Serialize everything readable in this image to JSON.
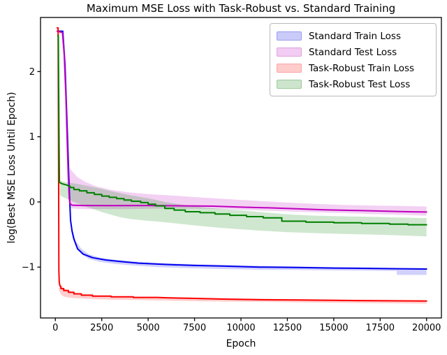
{
  "chart_data": {
    "type": "line",
    "title": "Maximum MSE Loss with Task-Robust vs. Standard Training",
    "xlabel": "Epoch",
    "ylabel": "log(Best MSE Loss Until Epoch)",
    "xlim": [
      -800,
      20800
    ],
    "ylim": [
      -1.78,
      2.83
    ],
    "grid": false,
    "legend_position": "upper right",
    "x_ticks": [
      0,
      2500,
      5000,
      7500,
      10000,
      12500,
      15000,
      17500,
      20000
    ],
    "x_tick_labels": [
      "0",
      "2500",
      "5000",
      "7500",
      "10000",
      "12500",
      "15000",
      "17500",
      "20000"
    ],
    "y_ticks": [
      2,
      1,
      0,
      -1
    ],
    "y_tick_labels": [
      "2",
      "1",
      "0",
      "−1"
    ],
    "series": [
      {
        "name": "Standard Train Loss",
        "line_color": "#0000ee",
        "band_fill": "rgba(0,0,238,0.18)",
        "legend_fill": "#cbcbf9",
        "legend_edge": "#9c9cf0",
        "points": [
          [
            100,
            2.62
          ],
          [
            400,
            2.62
          ],
          [
            520,
            2.1
          ],
          [
            620,
            1.3
          ],
          [
            700,
            0.6
          ],
          [
            760,
            0.1
          ],
          [
            820,
            -0.28
          ],
          [
            900,
            -0.45
          ],
          [
            1000,
            -0.57
          ],
          [
            1200,
            -0.72
          ],
          [
            1500,
            -0.8
          ],
          [
            2000,
            -0.855
          ],
          [
            2700,
            -0.89
          ],
          [
            3500,
            -0.915
          ],
          [
            4500,
            -0.94
          ],
          [
            6000,
            -0.96
          ],
          [
            7500,
            -0.975
          ],
          [
            9000,
            -0.985
          ],
          [
            11000,
            -1.0
          ],
          [
            13000,
            -1.005
          ],
          [
            15000,
            -1.015
          ],
          [
            17000,
            -1.02
          ],
          [
            18500,
            -1.025
          ],
          [
            20000,
            -1.03
          ]
        ],
        "band": [
          [
            900,
            -0.5,
            -0.4
          ],
          [
            1100,
            -0.68,
            -0.6
          ],
          [
            1400,
            -0.8,
            -0.72
          ],
          [
            1800,
            -0.875,
            -0.8
          ],
          [
            2400,
            -0.92,
            -0.855
          ],
          [
            3200,
            -0.95,
            -0.885
          ],
          [
            4200,
            -0.975,
            -0.91
          ],
          [
            5500,
            -1.0,
            -0.935
          ],
          [
            7000,
            -1.015,
            -0.95
          ],
          [
            9000,
            -1.03,
            -0.965
          ],
          [
            11000,
            -1.04,
            -0.98
          ],
          [
            13000,
            -1.045,
            -0.99
          ],
          [
            15000,
            -1.05,
            -1.0
          ],
          [
            17000,
            -1.055,
            -1.005
          ],
          [
            18400,
            -1.06,
            -1.01
          ],
          [
            18400,
            -1.12,
            -1.01
          ],
          [
            20000,
            -1.12,
            -1.015
          ]
        ]
      },
      {
        "name": "Standard Test Loss",
        "line_color": "#bf00bf",
        "band_fill": "rgba(191,0,191,0.18)",
        "legend_fill": "#f2ccf2",
        "legend_edge": "#dfa3df",
        "points": [
          [
            100,
            2.62
          ],
          [
            380,
            2.6
          ],
          [
            480,
            2.25
          ],
          [
            570,
            1.6
          ],
          [
            640,
            0.9
          ],
          [
            700,
            0.35
          ],
          [
            750,
            0.05
          ],
          [
            800,
            -0.03
          ],
          [
            900,
            -0.05
          ],
          [
            1500,
            -0.055
          ],
          [
            3000,
            -0.057
          ],
          [
            5000,
            -0.055
          ],
          [
            7000,
            -0.06
          ],
          [
            8500,
            -0.065
          ],
          [
            10000,
            -0.08
          ],
          [
            11500,
            -0.09
          ],
          [
            13000,
            -0.105
          ],
          [
            14500,
            -0.12
          ],
          [
            16000,
            -0.13
          ],
          [
            17500,
            -0.14
          ],
          [
            19000,
            -0.15
          ],
          [
            20000,
            -0.155
          ]
        ],
        "band": [
          [
            780,
            -0.09,
            0.52
          ],
          [
            900,
            -0.1,
            0.47
          ],
          [
            1200,
            -0.105,
            0.38
          ],
          [
            1600,
            -0.11,
            0.31
          ],
          [
            2200,
            -0.11,
            0.24
          ],
          [
            3000,
            -0.11,
            0.185
          ],
          [
            4000,
            -0.11,
            0.145
          ],
          [
            5000,
            -0.105,
            0.12
          ],
          [
            6500,
            -0.1,
            0.095
          ],
          [
            8000,
            -0.105,
            0.065
          ],
          [
            9500,
            -0.115,
            0.04
          ],
          [
            11000,
            -0.13,
            0.015
          ],
          [
            12500,
            -0.145,
            -0.01
          ],
          [
            14000,
            -0.16,
            -0.03
          ],
          [
            15500,
            -0.17,
            -0.045
          ],
          [
            17000,
            -0.185,
            -0.055
          ],
          [
            18500,
            -0.195,
            -0.06
          ],
          [
            20000,
            -0.21,
            -0.07
          ]
        ]
      },
      {
        "name": "Task-Robust Train Loss",
        "line_color": "#ff0000",
        "band_fill": "rgba(255,0,0,0.19)",
        "legend_fill": "#ffcccc",
        "legend_edge": "#fba4a4",
        "points": [
          [
            100,
            2.67
          ],
          [
            150,
            2.67
          ],
          [
            175,
            0.5
          ],
          [
            190,
            -1.05
          ],
          [
            210,
            -1.22
          ],
          [
            240,
            -1.28
          ],
          [
            300,
            -1.3
          ],
          [
            300,
            -1.33
          ],
          [
            450,
            -1.33
          ],
          [
            450,
            -1.36
          ],
          [
            700,
            -1.36
          ],
          [
            700,
            -1.385
          ],
          [
            1000,
            -1.385
          ],
          [
            1000,
            -1.41
          ],
          [
            1400,
            -1.41
          ],
          [
            1400,
            -1.43
          ],
          [
            2000,
            -1.43
          ],
          [
            2000,
            -1.445
          ],
          [
            3000,
            -1.445
          ],
          [
            3000,
            -1.455
          ],
          [
            4200,
            -1.455
          ],
          [
            4200,
            -1.465
          ],
          [
            5500,
            -1.465
          ],
          [
            6000,
            -1.47
          ],
          [
            7500,
            -1.48
          ],
          [
            9000,
            -1.49
          ],
          [
            11000,
            -1.5
          ],
          [
            13000,
            -1.505
          ],
          [
            15000,
            -1.51
          ],
          [
            17000,
            -1.515
          ],
          [
            20000,
            -1.52
          ]
        ],
        "band": [
          [
            200,
            -1.35,
            -1.22
          ],
          [
            300,
            -1.42,
            -1.29
          ],
          [
            450,
            -1.45,
            -1.32
          ],
          [
            700,
            -1.465,
            -1.355
          ],
          [
            1000,
            -1.475,
            -1.39
          ],
          [
            1400,
            -1.48,
            -1.415
          ],
          [
            2000,
            -1.49,
            -1.43
          ],
          [
            3000,
            -1.5,
            -1.445
          ],
          [
            4200,
            -1.505,
            -1.455
          ],
          [
            6000,
            -1.515,
            -1.462
          ],
          [
            8000,
            -1.525,
            -1.47
          ],
          [
            10000,
            -1.53,
            -1.48
          ],
          [
            13000,
            -1.54,
            -1.49
          ],
          [
            16000,
            -1.55,
            -1.5
          ],
          [
            20000,
            -1.56,
            -1.51
          ]
        ]
      },
      {
        "name": "Task-Robust Test Loss",
        "line_color": "#007f00",
        "band_fill": "rgba(0,127,0,0.19)",
        "legend_fill": "#cce5cc",
        "legend_edge": "#9dc99d",
        "points": [
          [
            130,
            2.55
          ],
          [
            160,
            2.55
          ],
          [
            200,
            0.9
          ],
          [
            220,
            0.3
          ],
          [
            350,
            0.28
          ],
          [
            600,
            0.26
          ],
          [
            800,
            0.24
          ],
          [
            800,
            0.22
          ],
          [
            1000,
            0.22
          ],
          [
            1000,
            0.19
          ],
          [
            1300,
            0.19
          ],
          [
            1300,
            0.17
          ],
          [
            1700,
            0.17
          ],
          [
            1700,
            0.14
          ],
          [
            2100,
            0.14
          ],
          [
            2100,
            0.115
          ],
          [
            2500,
            0.115
          ],
          [
            2500,
            0.09
          ],
          [
            2900,
            0.09
          ],
          [
            2900,
            0.07
          ],
          [
            3300,
            0.07
          ],
          [
            3300,
            0.05
          ],
          [
            3700,
            0.05
          ],
          [
            3700,
            0.03
          ],
          [
            4100,
            0.03
          ],
          [
            4100,
            0.01
          ],
          [
            4600,
            0.01
          ],
          [
            4600,
            -0.01
          ],
          [
            5000,
            -0.01
          ],
          [
            5000,
            -0.035
          ],
          [
            5400,
            -0.035
          ],
          [
            5400,
            -0.06
          ],
          [
            5900,
            -0.06
          ],
          [
            5900,
            -0.1
          ],
          [
            6400,
            -0.1
          ],
          [
            6400,
            -0.125
          ],
          [
            7000,
            -0.125
          ],
          [
            7000,
            -0.15
          ],
          [
            7800,
            -0.15
          ],
          [
            7800,
            -0.165
          ],
          [
            8600,
            -0.165
          ],
          [
            8600,
            -0.185
          ],
          [
            9400,
            -0.185
          ],
          [
            9400,
            -0.205
          ],
          [
            10300,
            -0.205
          ],
          [
            10300,
            -0.225
          ],
          [
            11200,
            -0.225
          ],
          [
            11200,
            -0.245
          ],
          [
            12200,
            -0.245
          ],
          [
            12200,
            -0.295
          ],
          [
            13500,
            -0.295
          ],
          [
            13500,
            -0.31
          ],
          [
            15000,
            -0.31
          ],
          [
            15000,
            -0.32
          ],
          [
            16500,
            -0.32
          ],
          [
            16500,
            -0.33
          ],
          [
            18000,
            -0.33
          ],
          [
            18000,
            -0.34
          ],
          [
            19000,
            -0.34
          ],
          [
            19000,
            -0.35
          ],
          [
            20000,
            -0.35
          ]
        ],
        "band": [
          [
            230,
            0.1,
            0.33
          ],
          [
            600,
            0.05,
            0.3
          ],
          [
            1000,
            0.0,
            0.285
          ],
          [
            1500,
            -0.06,
            0.26
          ],
          [
            2000,
            -0.105,
            0.23
          ],
          [
            2500,
            -0.155,
            0.2
          ],
          [
            3000,
            -0.195,
            0.165
          ],
          [
            3500,
            -0.235,
            0.135
          ],
          [
            4000,
            -0.26,
            0.105
          ],
          [
            4500,
            -0.275,
            0.08
          ],
          [
            5000,
            -0.29,
            0.055
          ],
          [
            5500,
            -0.3,
            0.025
          ],
          [
            6000,
            -0.315,
            -0.005
          ],
          [
            7000,
            -0.345,
            -0.05
          ],
          [
            8000,
            -0.375,
            -0.085
          ],
          [
            9000,
            -0.4,
            -0.11
          ],
          [
            10000,
            -0.42,
            -0.13
          ],
          [
            11000,
            -0.44,
            -0.155
          ],
          [
            12500,
            -0.465,
            -0.19
          ],
          [
            14000,
            -0.478,
            -0.21
          ],
          [
            15500,
            -0.49,
            -0.22
          ],
          [
            17000,
            -0.5,
            -0.228
          ],
          [
            18500,
            -0.513,
            -0.238
          ],
          [
            20000,
            -0.53,
            -0.248
          ]
        ]
      }
    ]
  }
}
